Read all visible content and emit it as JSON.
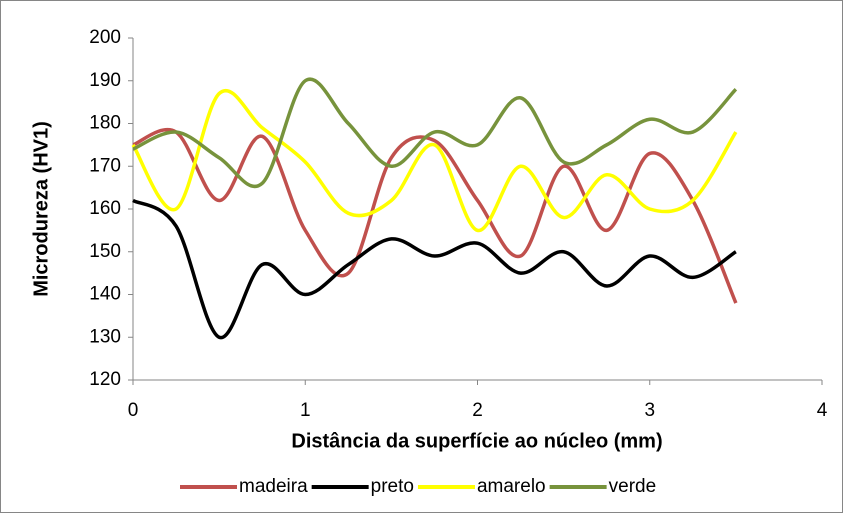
{
  "chart_data": {
    "type": "line",
    "xlabel": "Distância da superfície ao núcleo (mm)",
    "ylabel": "Microdureza (HV1)",
    "x": [
      0,
      0.25,
      0.5,
      0.75,
      1,
      1.25,
      1.5,
      1.75,
      2,
      2.25,
      2.5,
      2.75,
      3,
      3.25,
      3.5
    ],
    "series": [
      {
        "name": "madeira",
        "color": "#c0504d",
        "values": [
          175,
          178,
          162,
          177,
          155,
          145,
          172,
          176,
          162,
          149,
          170,
          155,
          173,
          162,
          138
        ]
      },
      {
        "name": "preto",
        "color": "#000000",
        "values": [
          162,
          156,
          130,
          147,
          140,
          147,
          153,
          149,
          152,
          145,
          150,
          142,
          149,
          144,
          150
        ]
      },
      {
        "name": "amarelo",
        "color": "#ffff00",
        "values": [
          175,
          160,
          187,
          179,
          171,
          159,
          162,
          175,
          155,
          170,
          158,
          168,
          160,
          162,
          178
        ]
      },
      {
        "name": "verde",
        "color": "#77933c",
        "values": [
          174,
          178,
          172,
          166,
          190,
          180,
          170,
          178,
          175,
          186,
          171,
          175,
          181,
          178,
          188
        ]
      }
    ],
    "xlim": [
      0,
      4
    ],
    "xticks": [
      0,
      1,
      2,
      3,
      4
    ],
    "ylim": [
      120,
      200
    ],
    "yticks": [
      120,
      130,
      140,
      150,
      160,
      170,
      180,
      190,
      200
    ],
    "smooth": true,
    "legend": "bottom"
  }
}
